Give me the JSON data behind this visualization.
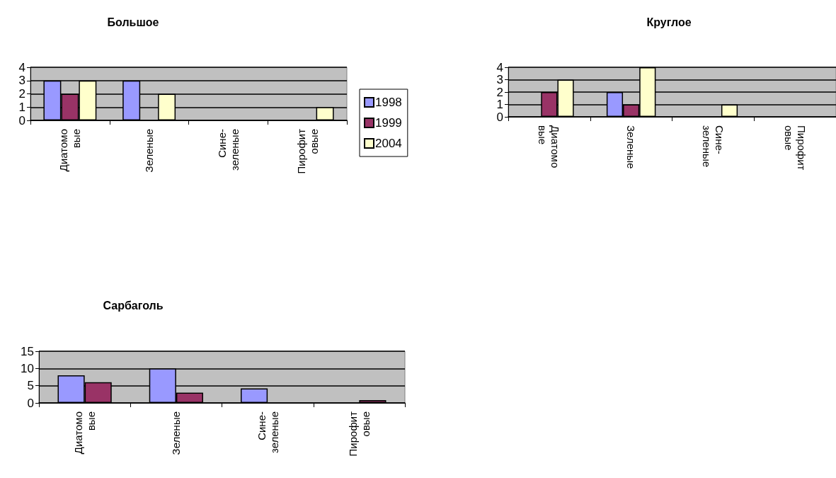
{
  "chart_data": [
    {
      "type": "bar",
      "title": "Большое",
      "categories": [
        "Диатомо\nвые",
        "Зеленые",
        "Сине-\nзеленые",
        "Пирофит\nовые"
      ],
      "series": [
        {
          "name": "1998",
          "color": "#9999ff",
          "values": [
            3,
            3,
            0,
            0
          ]
        },
        {
          "name": "1999",
          "color": "#993366",
          "values": [
            2,
            0,
            0,
            0
          ]
        },
        {
          "name": "2004",
          "color": "#ffffcc",
          "values": [
            3,
            2,
            0,
            1
          ]
        }
      ],
      "ylim": [
        0,
        4
      ],
      "yticks": [
        0,
        1,
        2,
        3,
        4
      ],
      "grid": "y",
      "legend": "right"
    },
    {
      "type": "bar",
      "title": "Круглое",
      "categories": [
        "Диатомо\nвые",
        "Зеленые",
        "Сине-\nзеленые",
        "Пирофит\nовые"
      ],
      "series": [
        {
          "color": "#9999ff",
          "values": [
            0,
            2,
            0,
            0
          ]
        },
        {
          "color": "#993366",
          "values": [
            2,
            1,
            0,
            0
          ]
        },
        {
          "color": "#ffffcc",
          "values": [
            3,
            4,
            1,
            0
          ]
        }
      ],
      "ylim": [
        0,
        4
      ],
      "yticks": [
        0,
        1,
        2,
        3,
        4
      ],
      "grid": "y"
    },
    {
      "type": "bar",
      "title": "Сарбаголь",
      "categories": [
        "Диатомо\nвые",
        "Зеленые",
        "Сине-\nзеленые",
        "Пирофит\nовые"
      ],
      "series": [
        {
          "color": "#9999ff",
          "values": [
            8,
            10,
            4.2,
            0
          ]
        },
        {
          "color": "#993366",
          "values": [
            6,
            3,
            0,
            0.8
          ]
        }
      ],
      "ylim": [
        0,
        15
      ],
      "yticks": [
        0,
        5,
        10,
        15
      ],
      "grid": "y"
    }
  ]
}
